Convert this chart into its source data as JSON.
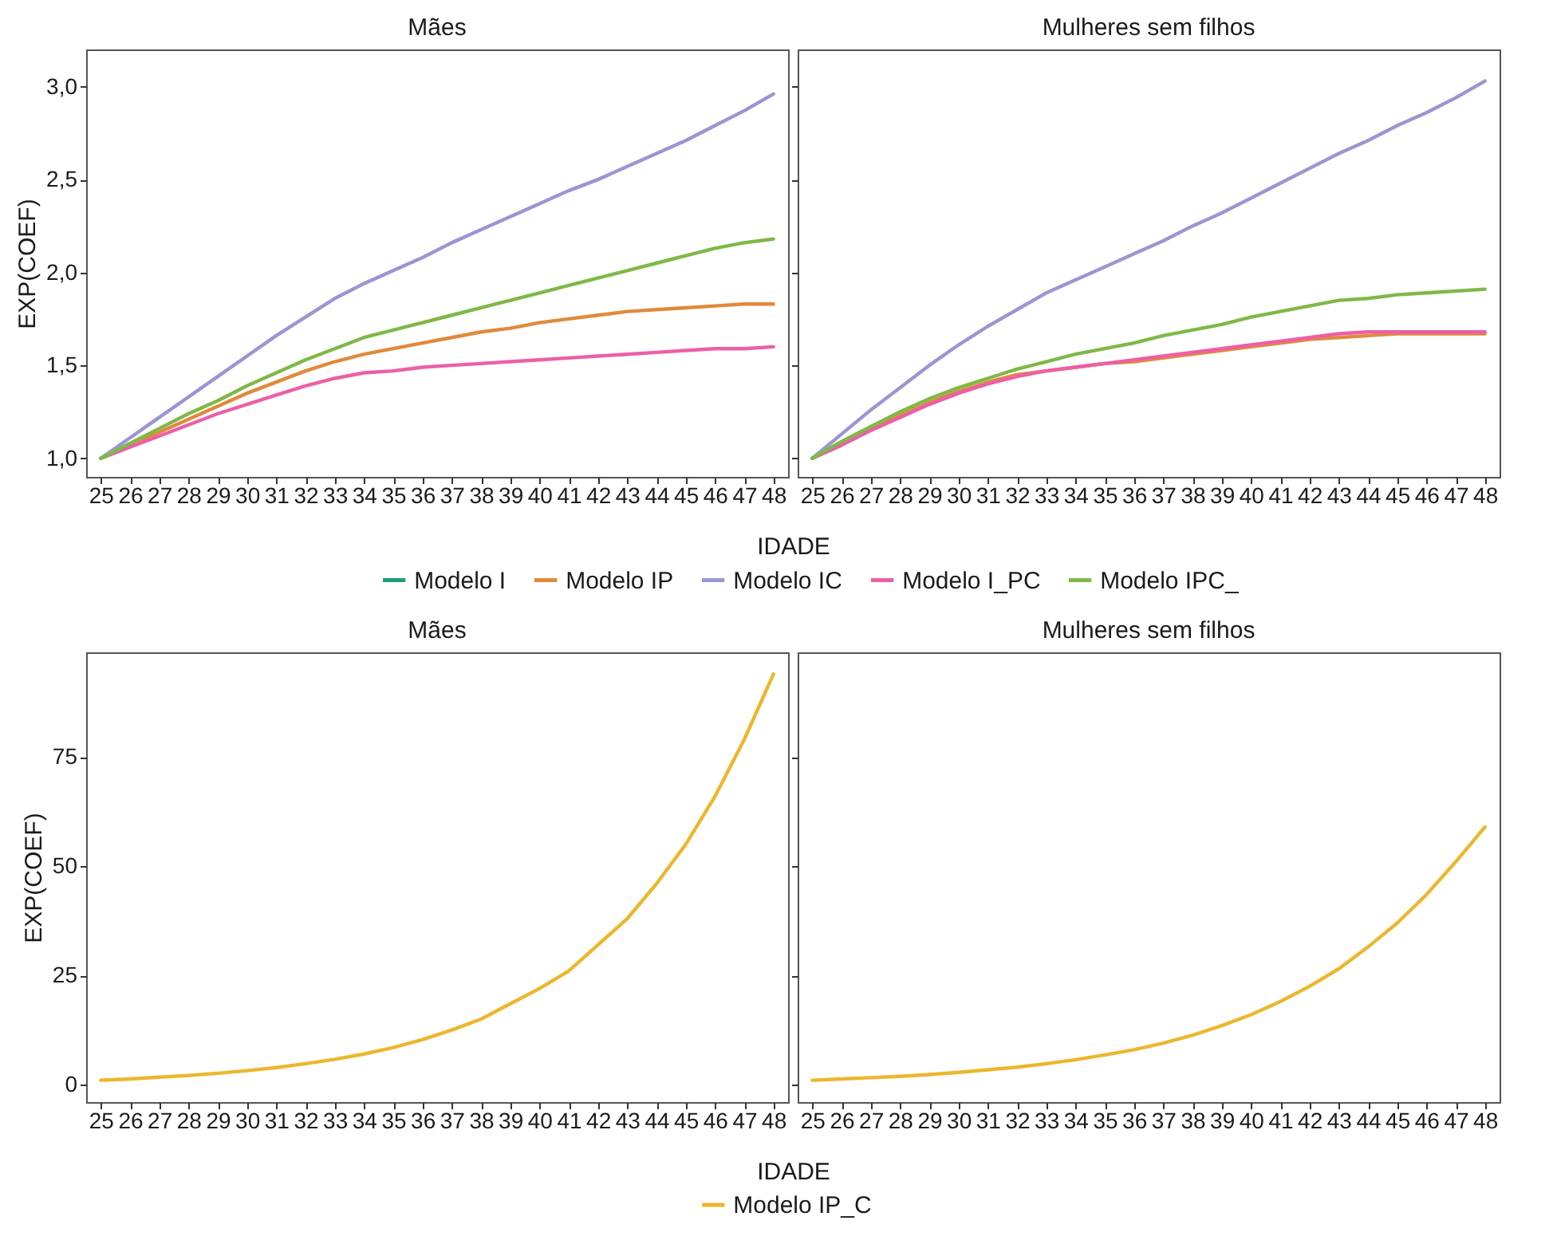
{
  "chart_data": [
    {
      "type": "line",
      "title": "Mães",
      "xlabel": "IDADE",
      "ylabel": "EXP(COEF)",
      "legend": "bottom",
      "categories": [
        "25",
        "26",
        "27",
        "28",
        "29",
        "30",
        "31",
        "32",
        "33",
        "34",
        "35",
        "36",
        "37",
        "38",
        "39",
        "40",
        "41",
        "42",
        "43",
        "44",
        "45",
        "46",
        "47",
        "48"
      ],
      "ylim": [
        0.9,
        3.2
      ],
      "yticks": [
        {
          "value": 1,
          "label": "1,0"
        },
        {
          "value": 1.5,
          "label": "1,5"
        },
        {
          "value": 2,
          "label": "2,0"
        },
        {
          "value": 2.5,
          "label": "2,5"
        },
        {
          "value": 3,
          "label": "3,0"
        }
      ],
      "series": [
        {
          "name": "Modelo I",
          "color": "#1b9e77",
          "values": [
            null,
            null,
            null,
            null,
            null,
            null,
            null,
            null,
            null,
            null,
            null,
            null,
            null,
            null,
            null,
            null,
            null,
            null,
            null,
            null,
            null,
            null,
            null,
            null
          ]
        },
        {
          "name": "Modelo IP",
          "color": "#e08a3c",
          "values": [
            1.0,
            1.07,
            1.14,
            1.21,
            1.28,
            1.35,
            1.41,
            1.47,
            1.52,
            1.56,
            1.59,
            1.62,
            1.65,
            1.68,
            1.7,
            1.73,
            1.75,
            1.77,
            1.79,
            1.8,
            1.81,
            1.82,
            1.83,
            1.83
          ]
        },
        {
          "name": "Modelo IC",
          "color": "#9a96d2",
          "values": [
            1.0,
            1.11,
            1.22,
            1.33,
            1.44,
            1.55,
            1.66,
            1.76,
            1.86,
            1.94,
            2.01,
            2.08,
            2.16,
            2.23,
            2.3,
            2.37,
            2.44,
            2.5,
            2.57,
            2.64,
            2.71,
            2.79,
            2.87,
            2.96
          ]
        },
        {
          "name": "Modelo I_PC",
          "color": "#ec5fa8",
          "values": [
            1.0,
            1.06,
            1.12,
            1.18,
            1.24,
            1.29,
            1.34,
            1.39,
            1.43,
            1.46,
            1.47,
            1.49,
            1.5,
            1.51,
            1.52,
            1.53,
            1.54,
            1.55,
            1.56,
            1.57,
            1.58,
            1.59,
            1.59,
            1.6
          ]
        },
        {
          "name": "Modelo IPC_",
          "color": "#7fb847",
          "values": [
            1.0,
            1.08,
            1.16,
            1.24,
            1.31,
            1.39,
            1.46,
            1.53,
            1.59,
            1.65,
            1.69,
            1.73,
            1.77,
            1.81,
            1.85,
            1.89,
            1.93,
            1.97,
            2.01,
            2.05,
            2.09,
            2.13,
            2.16,
            2.18
          ]
        }
      ]
    },
    {
      "type": "line",
      "title": "Mulheres sem filhos",
      "tick_labels": "x",
      "categories": [
        "25",
        "26",
        "27",
        "28",
        "29",
        "30",
        "31",
        "32",
        "33",
        "34",
        "35",
        "36",
        "37",
        "38",
        "39",
        "40",
        "41",
        "42",
        "43",
        "44",
        "45",
        "46",
        "47",
        "48"
      ],
      "ylim": [
        0.9,
        3.2
      ],
      "yticks": [
        1,
        1.5,
        2,
        2.5,
        3
      ],
      "series": [
        {
          "color": "#e08a3c",
          "values": [
            1.0,
            1.08,
            1.16,
            1.23,
            1.3,
            1.36,
            1.41,
            1.45,
            1.47,
            1.49,
            1.51,
            1.52,
            1.54,
            1.56,
            1.58,
            1.6,
            1.62,
            1.64,
            1.65,
            1.66,
            1.67,
            1.67,
            1.67,
            1.67
          ]
        },
        {
          "color": "#9a96d2",
          "values": [
            1.0,
            1.13,
            1.26,
            1.38,
            1.5,
            1.61,
            1.71,
            1.8,
            1.89,
            1.96,
            2.03,
            2.1,
            2.17,
            2.25,
            2.32,
            2.4,
            2.48,
            2.56,
            2.64,
            2.71,
            2.79,
            2.86,
            2.94,
            3.03
          ]
        },
        {
          "color": "#ec5fa8",
          "values": [
            1.0,
            1.07,
            1.15,
            1.22,
            1.29,
            1.35,
            1.4,
            1.44,
            1.47,
            1.49,
            1.51,
            1.53,
            1.55,
            1.57,
            1.59,
            1.61,
            1.63,
            1.65,
            1.67,
            1.68,
            1.68,
            1.68,
            1.68,
            1.68
          ]
        },
        {
          "color": "#7fb847",
          "values": [
            1.0,
            1.09,
            1.17,
            1.25,
            1.32,
            1.38,
            1.43,
            1.48,
            1.52,
            1.56,
            1.59,
            1.62,
            1.66,
            1.69,
            1.72,
            1.76,
            1.79,
            1.82,
            1.85,
            1.86,
            1.88,
            1.89,
            1.9,
            1.91
          ]
        }
      ]
    },
    {
      "type": "line",
      "title": "Mães",
      "xlabel": "IDADE",
      "ylabel": "EXP(COEF)",
      "legend": "bottom",
      "categories": [
        "25",
        "26",
        "27",
        "28",
        "29",
        "30",
        "31",
        "32",
        "33",
        "34",
        "35",
        "36",
        "37",
        "38",
        "39",
        "40",
        "41",
        "42",
        "43",
        "44",
        "45",
        "46",
        "47",
        "48"
      ],
      "ylim": [
        -4,
        99
      ],
      "yticks": [
        0,
        25,
        50,
        75
      ],
      "series": [
        {
          "name": "Modelo IP_C",
          "color": "#ecb72e",
          "values": [
            1.0,
            1.3,
            1.7,
            2.1,
            2.6,
            3.2,
            3.9,
            4.8,
            5.8,
            7.0,
            8.5,
            10.3,
            12.5,
            15.0,
            18.5,
            22,
            26,
            32,
            38,
            46,
            55,
            66,
            79,
            94
          ]
        }
      ]
    },
    {
      "type": "line",
      "title": "Mulheres sem filhos",
      "tick_labels": "x",
      "categories": [
        "25",
        "26",
        "27",
        "28",
        "29",
        "30",
        "31",
        "32",
        "33",
        "34",
        "35",
        "36",
        "37",
        "38",
        "39",
        "40",
        "41",
        "42",
        "43",
        "44",
        "45",
        "46",
        "47",
        "48"
      ],
      "ylim": [
        -4,
        99
      ],
      "yticks": [
        0,
        25,
        50,
        75
      ],
      "series": [
        {
          "color": "#ecb72e",
          "values": [
            1.0,
            1.3,
            1.6,
            1.9,
            2.3,
            2.8,
            3.4,
            4.0,
            4.8,
            5.7,
            6.8,
            8.0,
            9.5,
            11.3,
            13.5,
            16,
            19,
            22.5,
            26.5,
            31.5,
            37,
            43.5,
            51,
            59
          ]
        }
      ]
    }
  ]
}
